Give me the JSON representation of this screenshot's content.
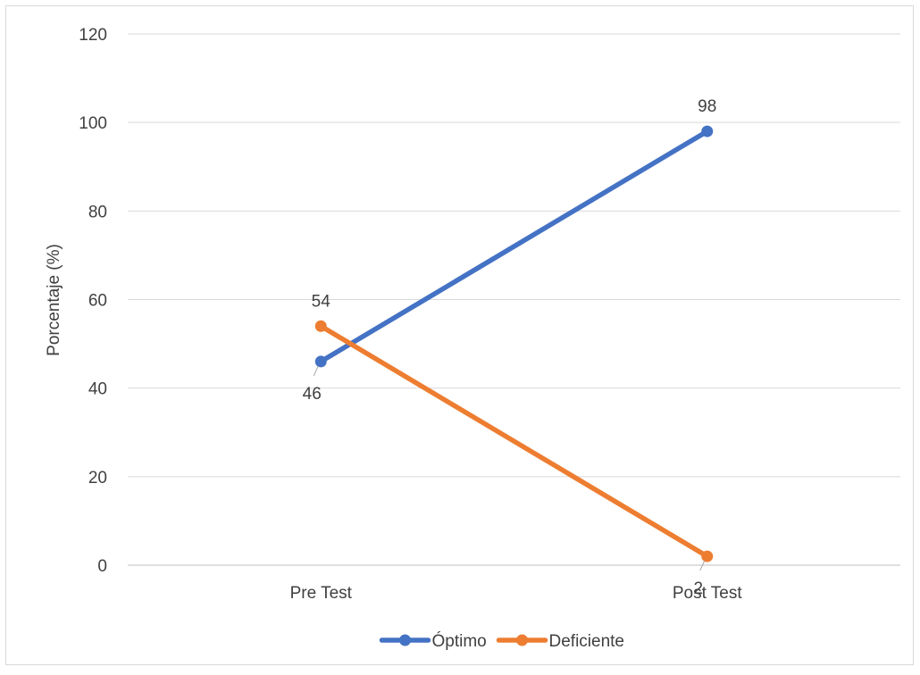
{
  "chart_data": {
    "type": "line",
    "title": "",
    "xlabel": "",
    "ylabel": "Porcentaje (%)",
    "categories": [
      "Pre Test",
      "Post Test"
    ],
    "ylim": [
      0,
      120
    ],
    "yticks": [
      0,
      20,
      40,
      60,
      80,
      100,
      120
    ],
    "grid": true,
    "legend": "bottom",
    "series": [
      {
        "name": "Óptimo",
        "values": [
          46,
          98
        ],
        "labels": [
          "46",
          "98"
        ],
        "color": "#4472C4"
      },
      {
        "name": "Deficiente",
        "values": [
          54,
          2
        ],
        "labels": [
          "54",
          "2"
        ],
        "color": "#ED7D31"
      }
    ]
  },
  "colors": {
    "gridline": "#d9d9d9",
    "axis": "#bfbfbf",
    "text": "#404040",
    "border": "#d9d9d9"
  }
}
